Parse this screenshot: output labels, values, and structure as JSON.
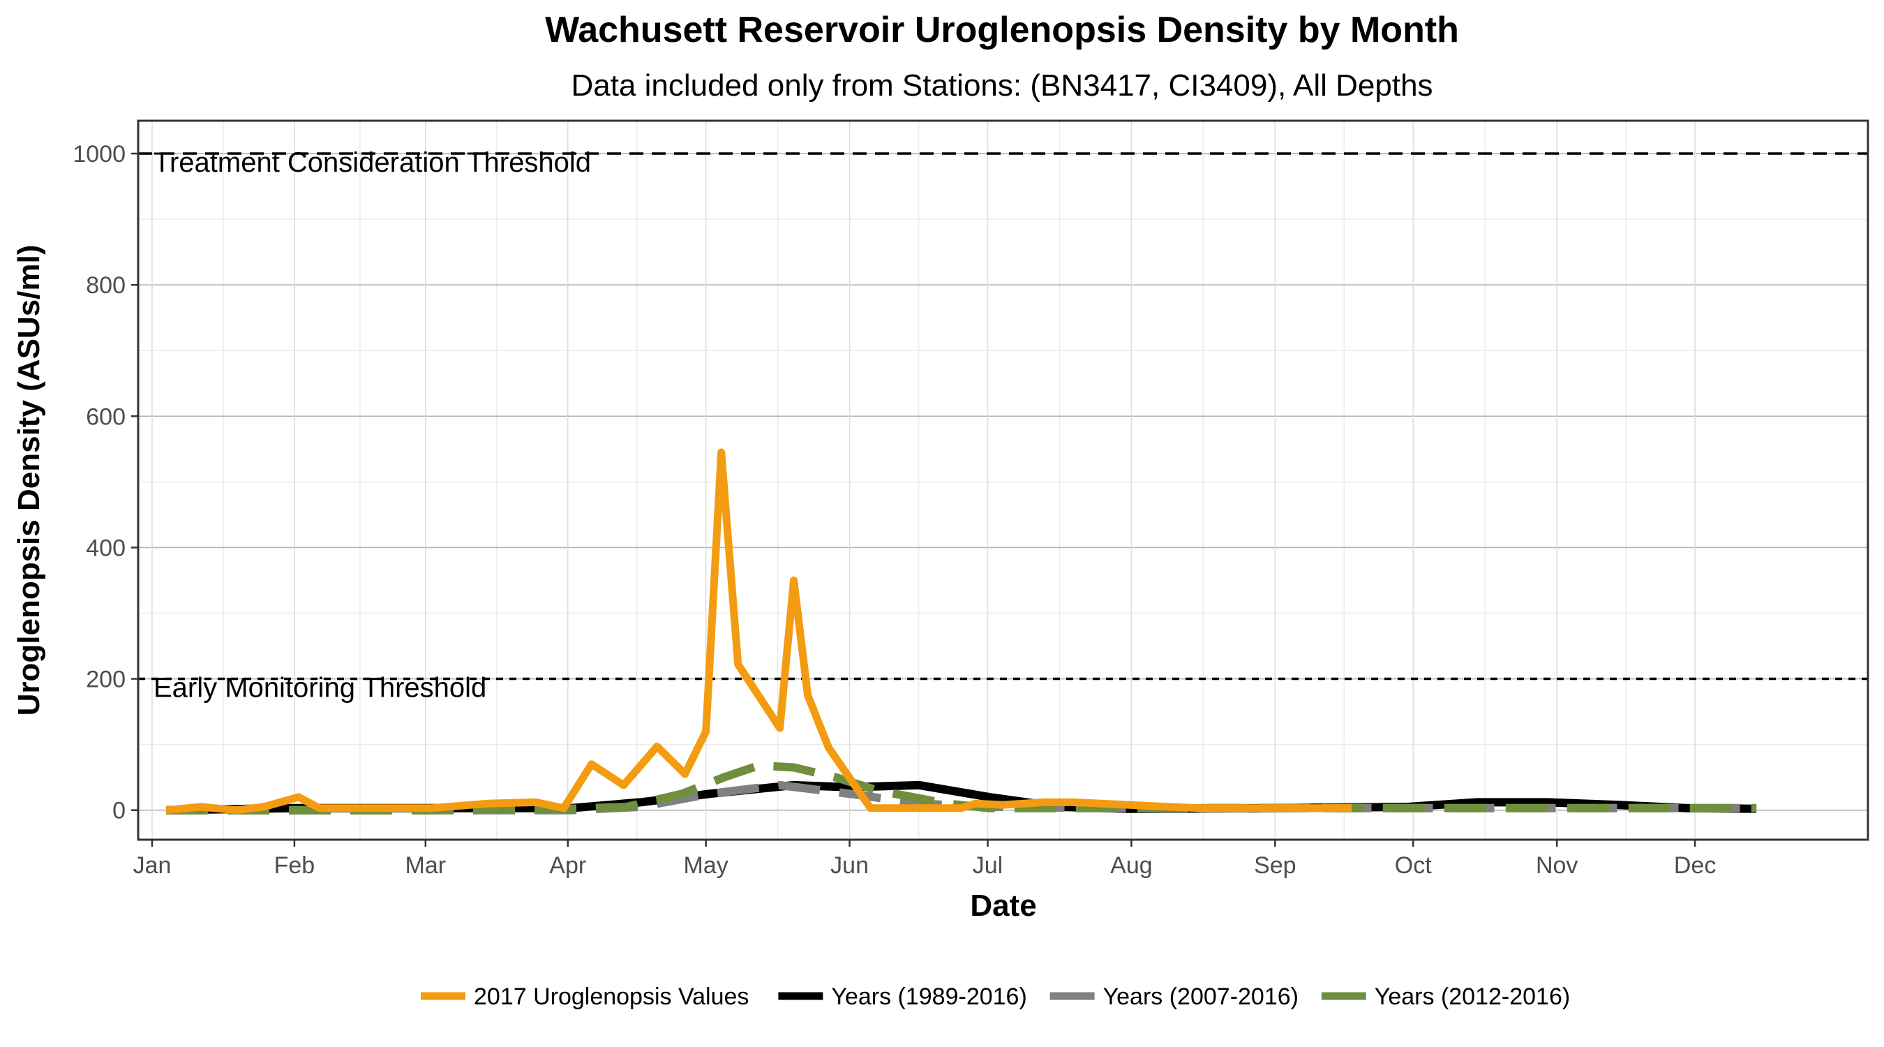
{
  "chart_data": {
    "type": "line",
    "title": "Wachusett Reservoir Uroglenopsis Density by Month",
    "subtitle": "Data included only from Stations: (BN3417, CI3409), All Depths",
    "xlabel": "Date",
    "ylabel": "Uroglenopsis Density (ASUs/ml)",
    "xlim": [
      -0.1,
      12.3
    ],
    "ylim": [
      -45,
      1050
    ],
    "x_ticks": [
      {
        "label": "Jan",
        "x": 0
      },
      {
        "label": "Feb",
        "x": 1.02
      },
      {
        "label": "Mar",
        "x": 1.96
      },
      {
        "label": "Apr",
        "x": 2.98
      },
      {
        "label": "May",
        "x": 3.97
      },
      {
        "label": "Jun",
        "x": 5.0
      },
      {
        "label": "Jul",
        "x": 5.99
      },
      {
        "label": "Aug",
        "x": 7.02
      },
      {
        "label": "Sep",
        "x": 8.05
      },
      {
        "label": "Oct",
        "x": 9.04
      },
      {
        "label": "Nov",
        "x": 10.07
      },
      {
        "label": "Dec",
        "x": 11.06
      }
    ],
    "y_ticks": [
      0,
      200,
      400,
      600,
      800,
      1000
    ],
    "thresholds": [
      {
        "value": 1000,
        "label": "Treatment Consideration Threshold"
      },
      {
        "value": 200,
        "label": "Early Monitoring Threshold"
      }
    ],
    "series": [
      {
        "name": "Years (1989-2016)",
        "color": "#000000",
        "style": "solid",
        "x": [
          0.1,
          1.0,
          2.0,
          3.0,
          3.5,
          4.0,
          4.6,
          5.0,
          5.5,
          6.0,
          6.5,
          7.0,
          8.0,
          9.0,
          9.5,
          10.0,
          10.5,
          11.0,
          11.5
        ],
        "y": [
          0,
          3,
          3,
          3,
          12,
          25,
          38,
          35,
          38,
          20,
          5,
          2,
          3,
          5,
          12,
          12,
          8,
          3,
          2
        ]
      },
      {
        "name": "Years (2007-2016)",
        "color": "#808080",
        "style": "dashed",
        "x": [
          0.1,
          1.0,
          2.0,
          2.8,
          3.0,
          3.5,
          4.0,
          4.5,
          5.0,
          5.5,
          6.0,
          7.0,
          8.0,
          9.0,
          9.5,
          10.0,
          10.5,
          11.0,
          11.5
        ],
        "y": [
          0,
          0,
          0,
          0,
          0,
          5,
          25,
          38,
          25,
          10,
          5,
          3,
          3,
          3,
          3,
          3,
          3,
          3,
          3
        ]
      },
      {
        "name": "Years (2012-2016)",
        "color": "#6f8f3c",
        "style": "dashed",
        "x": [
          0.1,
          1.0,
          2.0,
          3.0,
          3.4,
          3.8,
          4.1,
          4.35,
          4.6,
          4.9,
          5.2,
          5.7,
          6.0,
          7.0,
          8.0,
          9.0,
          9.5,
          10.0,
          10.5,
          11.0,
          11.5
        ],
        "y": [
          0,
          0,
          0,
          2,
          5,
          25,
          50,
          68,
          65,
          50,
          30,
          10,
          3,
          3,
          3,
          3,
          3,
          3,
          3,
          3,
          3
        ]
      },
      {
        "name": "2017 Uroglenopsis Values",
        "color": "#f39c12",
        "style": "solid",
        "x": [
          0.1,
          0.35,
          0.6,
          0.8,
          1.05,
          1.2,
          1.6,
          2.0,
          2.4,
          2.75,
          2.95,
          3.15,
          3.38,
          3.62,
          3.82,
          3.97,
          4.08,
          4.2,
          4.5,
          4.6,
          4.7,
          4.85,
          5.15,
          5.3,
          5.5,
          5.8,
          5.9,
          6.1,
          6.4,
          6.6,
          7.5,
          8.5,
          8.6
        ],
        "y": [
          0,
          5,
          0,
          5,
          20,
          3,
          3,
          3,
          10,
          12,
          3,
          70,
          38,
          97,
          55,
          120,
          545,
          222,
          125,
          350,
          175,
          95,
          3,
          3,
          3,
          3,
          10,
          8,
          12,
          12,
          3,
          3,
          3
        ]
      }
    ]
  },
  "legend": {
    "items": [
      {
        "label": "2017 Uroglenopsis Values",
        "color": "#f39c12"
      },
      {
        "label": "Years (1989-2016)",
        "color": "#000000"
      },
      {
        "label": "Years (2007-2016)",
        "color": "#808080"
      },
      {
        "label": "Years (2012-2016)",
        "color": "#6f8f3c"
      }
    ]
  }
}
